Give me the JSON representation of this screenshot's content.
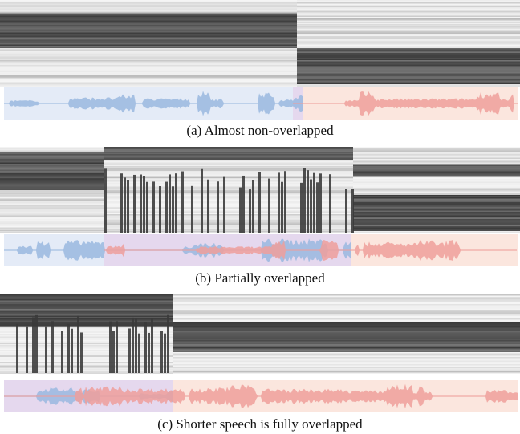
{
  "panels": [
    {
      "caption": "(a) Almost non-overlapped"
    },
    {
      "caption": "(b) Partially overlapped"
    },
    {
      "caption": "(c) Shorter speech is fully overlapped"
    }
  ]
}
